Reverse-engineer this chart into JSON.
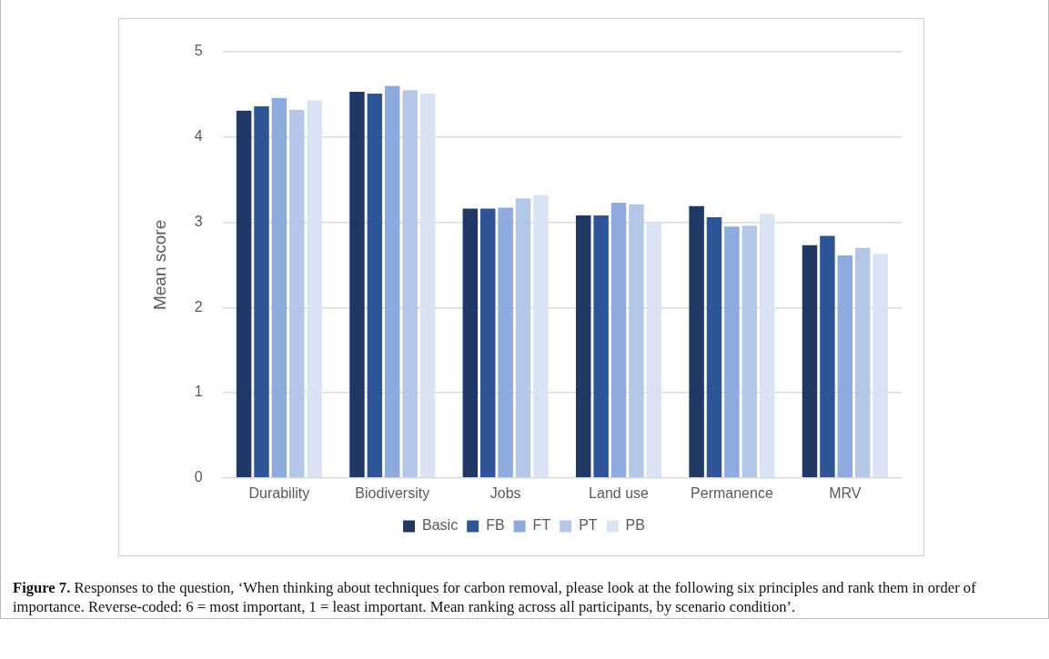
{
  "chart_data": {
    "type": "bar",
    "ylabel": "Mean score",
    "categories": [
      "Durability",
      "Biodiversity",
      "Jobs",
      "Land use",
      "Permanence",
      "MRV"
    ],
    "series": [
      {
        "name": "Basic",
        "color": "#203864",
        "values": [
          4.31,
          4.53,
          3.16,
          3.08,
          3.19,
          2.73
        ]
      },
      {
        "name": "FB",
        "color": "#2f5597",
        "values": [
          4.36,
          4.51,
          3.16,
          3.08,
          3.06,
          2.84
        ]
      },
      {
        "name": "FT",
        "color": "#8faadc",
        "values": [
          4.46,
          4.6,
          3.17,
          3.23,
          2.95,
          2.61
        ]
      },
      {
        "name": "PT",
        "color": "#b4c7e7",
        "values": [
          4.32,
          4.55,
          3.28,
          3.21,
          2.96,
          2.7
        ]
      },
      {
        "name": "PB",
        "color": "#dae3f3",
        "values": [
          4.43,
          4.51,
          3.32,
          3.0,
          3.1,
          2.63
        ]
      }
    ],
    "ylim": [
      0,
      5
    ],
    "yticks": [
      0,
      1,
      2,
      3,
      4,
      5
    ],
    "grid": "y",
    "legend": "bottom",
    "annotations": [
      "Figure 7. Responses to the question, ‘When thinking about techniques for carbon removal, please look at the following six principles and rank them in order of importance. Reverse-coded: 6 = most important, 1 = least important. Mean ranking across all participants, by scenario condition’."
    ]
  }
}
